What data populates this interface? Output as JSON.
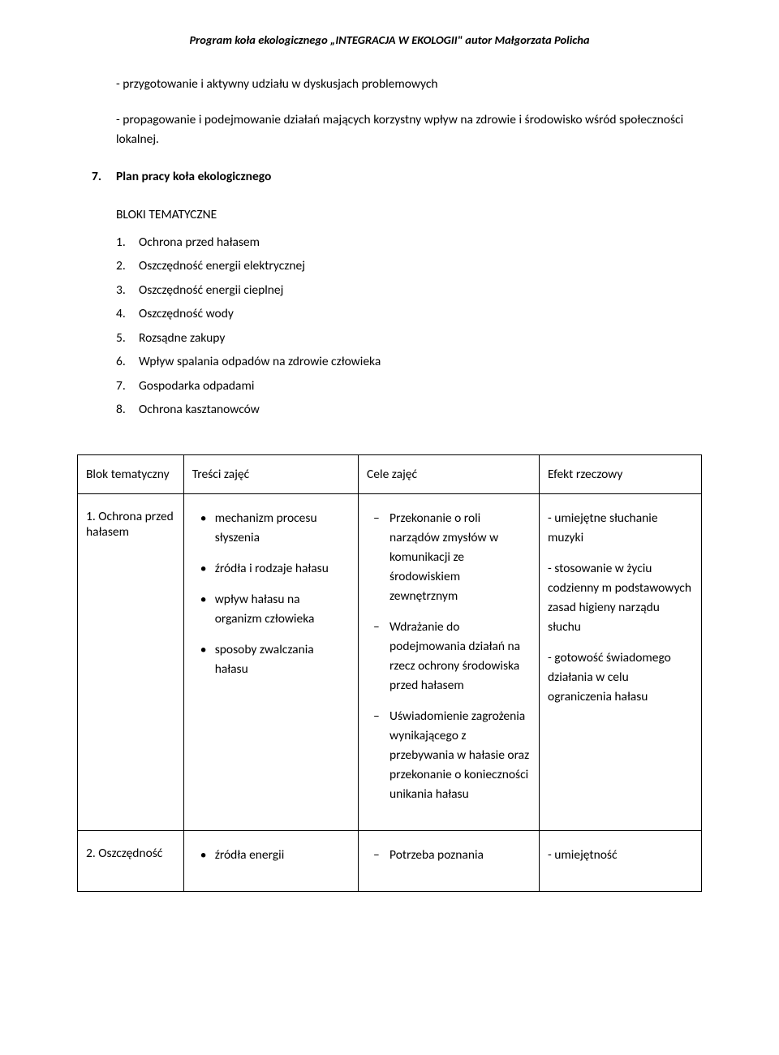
{
  "header": "Program koła ekologicznego „INTEGRACJA W EKOLOGII\" autor Małgorzata Policha",
  "intro": {
    "p1": "- przygotowanie i aktywny udziału w dyskusjach problemowych",
    "p2": "- propagowanie i podejmowanie działań mających korzystny wpływ na zdrowie i środowisko wśród społeczności lokalnej."
  },
  "section": {
    "num": "7.",
    "title": "Plan pracy koła ekologicznego"
  },
  "subhead": "BLOKI TEMATYCZNE",
  "numlist": [
    {
      "n": "1.",
      "t": "Ochrona przed hałasem"
    },
    {
      "n": "2.",
      "t": "Oszczędność energii elektrycznej"
    },
    {
      "n": "3.",
      "t": "Oszczędność energii cieplnej"
    },
    {
      "n": "4.",
      "t": "Oszczędność  wody"
    },
    {
      "n": "5.",
      "t": "Rozsądne zakupy"
    },
    {
      "n": "6.",
      "t": "Wpływ spalania odpadów na zdrowie człowieka"
    },
    {
      "n": "7.",
      "t": " Gospodarka odpadami"
    },
    {
      "n": "8.",
      "t": "Ochrona kasztanowców"
    }
  ],
  "table": {
    "headers": [
      "Blok tematyczny",
      "Treści zajęć",
      "Cele zajęć",
      "Efekt rzeczowy"
    ],
    "row1": {
      "c1": "1. Ochrona przed hałasem",
      "c2": [
        "mechanizm  procesu słyszenia",
        "źródła i rodzaje hałasu",
        " wpływ hałasu na organizm człowieka",
        "sposoby zwalczania hałasu"
      ],
      "c3": [
        "Przekonanie o roli narządów zmysłów w komunikacji ze środowiskiem zewnętrznym",
        "Wdrażanie do podejmowania działań na rzecz ochrony środowiska przed hałasem",
        "Uświadomienie zagrożenia wynikającego z przebywania w hałasie oraz przekonanie o konieczności unikania hałasu"
      ],
      "c4": [
        "- umiejętne słuchanie muzyki",
        "- stosowanie w życiu codzienny m podstawowych zasad higieny narządu słuchu",
        "- gotowość świadomego działania w celu ograniczenia hałasu"
      ]
    },
    "row2": {
      "c1": "2. Oszczędność",
      "c2": [
        "źródła energii"
      ],
      "c3": [
        "Potrzeba poznania"
      ],
      "c4": [
        "- umiejętność"
      ]
    }
  }
}
